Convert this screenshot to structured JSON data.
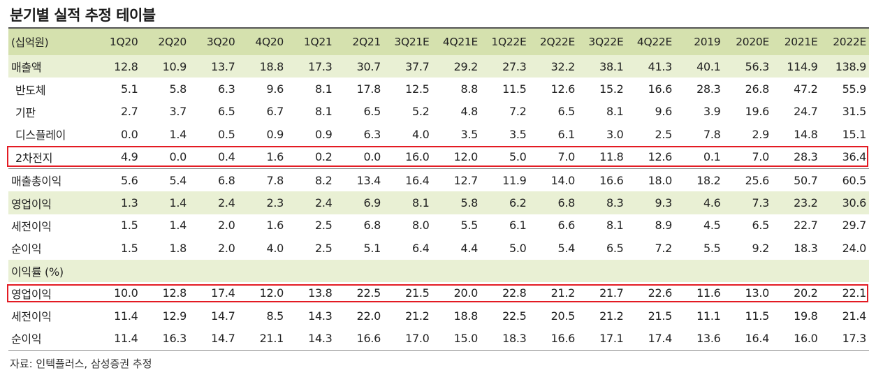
{
  "title": "분기별 실적 추정 테이블",
  "header": {
    "unit": "(십억원)",
    "periods": [
      "1Q20",
      "2Q20",
      "3Q20",
      "4Q20",
      "1Q21",
      "2Q21",
      "3Q21E",
      "4Q21E",
      "1Q22E",
      "2Q22E",
      "3Q22E",
      "4Q22E",
      "2019",
      "2020E",
      "2021E",
      "2022E"
    ]
  },
  "rows": [
    {
      "label": "매출액",
      "values": [
        "12.8",
        "10.9",
        "13.7",
        "18.8",
        "17.3",
        "30.7",
        "37.7",
        "29.2",
        "27.3",
        "32.2",
        "38.1",
        "41.3",
        "40.1",
        "56.3",
        "114.9",
        "138.9"
      ]
    },
    {
      "label": "반도체",
      "values": [
        "5.1",
        "5.8",
        "6.3",
        "9.6",
        "8.1",
        "17.8",
        "12.5",
        "8.8",
        "11.5",
        "12.6",
        "15.2",
        "16.6",
        "28.3",
        "26.8",
        "47.2",
        "55.9"
      ]
    },
    {
      "label": "기판",
      "values": [
        "2.7",
        "3.7",
        "6.5",
        "6.7",
        "8.1",
        "6.5",
        "5.2",
        "4.8",
        "7.2",
        "6.5",
        "8.1",
        "9.6",
        "3.9",
        "19.6",
        "24.7",
        "31.5"
      ]
    },
    {
      "label": "디스플레이",
      "values": [
        "0.0",
        "1.4",
        "0.5",
        "0.9",
        "0.9",
        "6.3",
        "4.0",
        "3.5",
        "3.5",
        "6.1",
        "3.0",
        "2.5",
        "7.8",
        "2.9",
        "14.8",
        "15.1"
      ]
    },
    {
      "label": "2차전지",
      "values": [
        "4.9",
        "0.0",
        "0.4",
        "1.6",
        "0.2",
        "0.0",
        "16.0",
        "12.0",
        "5.0",
        "7.0",
        "11.8",
        "12.6",
        "0.1",
        "7.0",
        "28.3",
        "36.4"
      ]
    },
    {
      "label": "매출총이익",
      "values": [
        "5.6",
        "5.4",
        "6.8",
        "7.8",
        "8.2",
        "13.4",
        "16.4",
        "12.7",
        "11.9",
        "14.0",
        "16.6",
        "18.0",
        "18.2",
        "25.6",
        "50.7",
        "60.5"
      ]
    },
    {
      "label": "영업이익",
      "values": [
        "1.3",
        "1.4",
        "2.4",
        "2.3",
        "2.4",
        "6.9",
        "8.1",
        "5.8",
        "6.2",
        "6.8",
        "8.3",
        "9.3",
        "4.6",
        "7.3",
        "23.2",
        "30.6"
      ]
    },
    {
      "label": "세전이익",
      "values": [
        "1.5",
        "1.4",
        "2.0",
        "1.6",
        "2.5",
        "6.8",
        "8.0",
        "5.5",
        "6.1",
        "6.6",
        "8.1",
        "8.9",
        "4.5",
        "6.5",
        "22.7",
        "29.7"
      ]
    },
    {
      "label": "순이익",
      "values": [
        "1.5",
        "1.8",
        "2.0",
        "4.0",
        "2.5",
        "5.1",
        "6.4",
        "4.4",
        "5.0",
        "5.4",
        "6.5",
        "7.2",
        "5.5",
        "9.2",
        "18.3",
        "24.0"
      ]
    }
  ],
  "margin_section": {
    "label": "이익률 (%)",
    "rows": [
      {
        "label": "영업이익",
        "values": [
          "10.0",
          "12.8",
          "17.4",
          "12.0",
          "13.8",
          "22.5",
          "21.5",
          "20.0",
          "22.8",
          "21.2",
          "21.7",
          "22.6",
          "11.6",
          "13.0",
          "20.2",
          "22.1"
        ]
      },
      {
        "label": "세전이익",
        "values": [
          "11.4",
          "12.9",
          "14.7",
          "8.5",
          "14.3",
          "22.0",
          "21.2",
          "18.8",
          "22.5",
          "20.5",
          "21.2",
          "21.5",
          "11.1",
          "11.5",
          "19.8",
          "21.4"
        ]
      },
      {
        "label": "순이익",
        "values": [
          "11.4",
          "16.3",
          "14.7",
          "21.1",
          "14.3",
          "16.6",
          "17.0",
          "15.0",
          "18.3",
          "16.6",
          "17.1",
          "17.4",
          "13.6",
          "16.4",
          "16.0",
          "17.3"
        ]
      }
    ]
  },
  "source": "자료: 인텍플러스, 삼성증권 추정",
  "colors": {
    "header_bg": "#d5e1ae",
    "shade_bg": "#e9f0d4",
    "highlight": "#e31b23"
  }
}
